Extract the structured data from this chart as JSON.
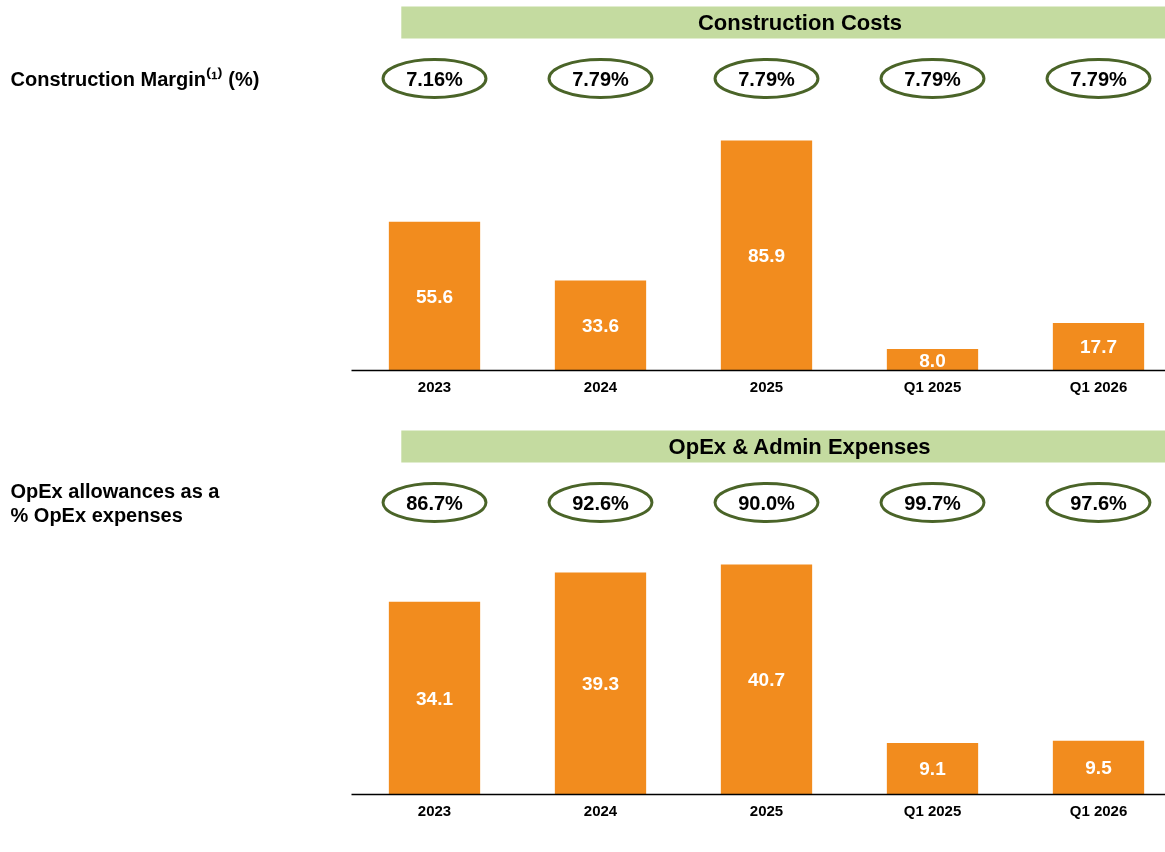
{
  "chart_data": [
    {
      "type": "bar",
      "title": "Construction Costs",
      "categories": [
        "2023",
        "2024",
        "2025",
        "Q1 2025",
        "Q1 2026"
      ],
      "values": [
        55.6,
        33.6,
        85.9,
        8.0,
        17.7
      ],
      "value_labels": [
        "55.6",
        "33.6",
        "85.9",
        "8.0",
        "17.7"
      ],
      "color": "#f28c1e",
      "annotations": [
        "Construction Margin⁽¹⁾ (%)",
        "7.16%",
        "7.79%",
        "7.79%",
        "7.79%",
        "7.79%"
      ]
    },
    {
      "type": "bar",
      "title": "OpEx & Admin Expenses",
      "categories": [
        "2023",
        "2024",
        "2025",
        "Q1 2025",
        "Q1 2026"
      ],
      "values": [
        34.1,
        39.3,
        40.7,
        9.1,
        9.5
      ],
      "value_labels": [
        "34.1",
        "39.3",
        "40.7",
        "9.1",
        "9.5"
      ],
      "color": "#f28c1e",
      "annotations": [
        "OpEx allowances as a\n% OpEx expenses",
        "86.7%",
        "92.6%",
        "90.0%",
        "99.7%",
        "97.6%"
      ]
    }
  ]
}
